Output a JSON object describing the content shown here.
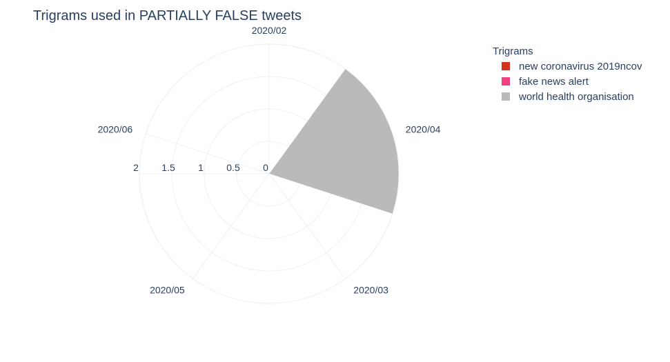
{
  "chart_data": {
    "type": "barpolar",
    "title": "Trigrams used in PARTIALLY FALSE tweets",
    "angular_categories": [
      "2020/02",
      "2020/04",
      "2020/03",
      "2020/05",
      "2020/06"
    ],
    "radial_range": [
      0,
      2
    ],
    "radial_ticks": [
      "0",
      "0.5",
      "1",
      "1.5",
      "2"
    ],
    "radial_tick_values": [
      0,
      0.5,
      1,
      1.5,
      2
    ],
    "legend": {
      "title": "Trigrams",
      "placement": "top-right"
    },
    "series": [
      {
        "name": "new coronavirus 2019ncov",
        "color": "#d2321e",
        "values": [
          0,
          0,
          0,
          0,
          0
        ]
      },
      {
        "name": "fake news alert",
        "color": "#f24182",
        "values": [
          0,
          0,
          0,
          0,
          0
        ]
      },
      {
        "name": "world health organisation",
        "color": "#bababa",
        "values": [
          0,
          2,
          0,
          0,
          0
        ]
      }
    ]
  }
}
